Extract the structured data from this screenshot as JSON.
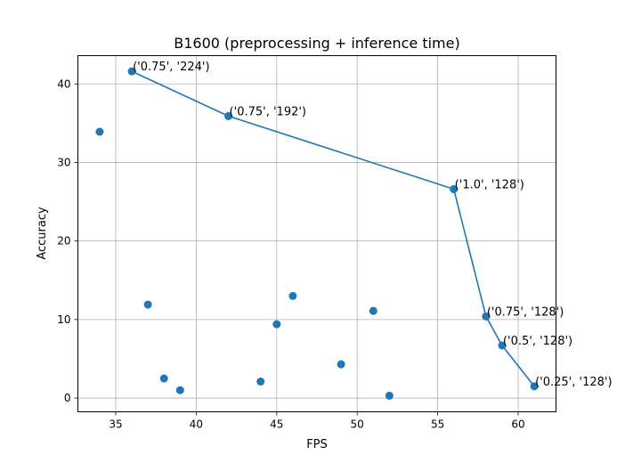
{
  "chart_data": {
    "type": "scatter",
    "title": "B1600 (preprocessing + inference time)",
    "xlabel": "FPS",
    "ylabel": "Accuracy",
    "xlim": [
      32.65,
      62.35
    ],
    "ylim": [
      -1.75,
      43.6
    ],
    "xticks": [
      35,
      40,
      45,
      50,
      55,
      60
    ],
    "yticks": [
      0,
      10,
      20,
      30,
      40
    ],
    "grid": true,
    "color": "#1f77b4",
    "points": [
      {
        "x": 36,
        "y": 41.6
      },
      {
        "x": 34,
        "y": 33.9
      },
      {
        "x": 42,
        "y": 35.9
      },
      {
        "x": 56,
        "y": 26.6
      },
      {
        "x": 37,
        "y": 11.9
      },
      {
        "x": 46,
        "y": 13.0
      },
      {
        "x": 45,
        "y": 9.4
      },
      {
        "x": 51,
        "y": 11.1
      },
      {
        "x": 58,
        "y": 10.4
      },
      {
        "x": 59,
        "y": 6.7
      },
      {
        "x": 49,
        "y": 4.3
      },
      {
        "x": 38,
        "y": 2.5
      },
      {
        "x": 39,
        "y": 1.0
      },
      {
        "x": 44,
        "y": 2.1
      },
      {
        "x": 52,
        "y": 0.3
      },
      {
        "x": 61,
        "y": 1.5
      }
    ],
    "frontier": [
      {
        "x": 36,
        "y": 41.6,
        "label": "('0.75', '224')"
      },
      {
        "x": 42,
        "y": 35.9,
        "label": "('0.75', '192')"
      },
      {
        "x": 56,
        "y": 26.6,
        "label": "('1.0', '128')"
      },
      {
        "x": 58,
        "y": 10.4,
        "label": "('0.75', '128')"
      },
      {
        "x": 59,
        "y": 6.7,
        "label": "('0.5', '128')"
      },
      {
        "x": 61,
        "y": 1.5,
        "label": "('0.25', '128')"
      }
    ]
  }
}
